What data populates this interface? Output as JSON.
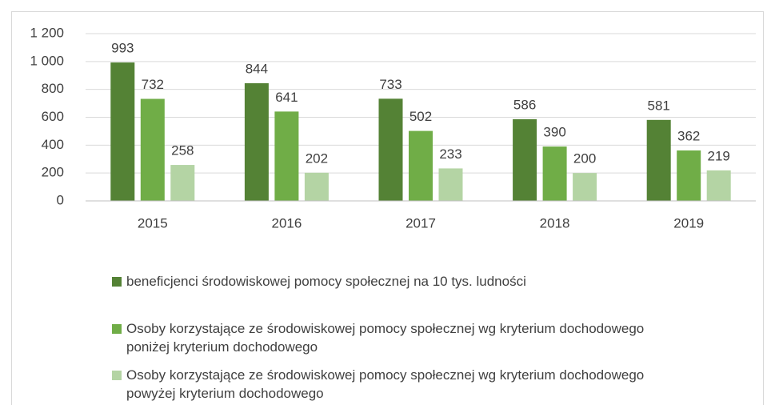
{
  "chart_data": {
    "type": "bar",
    "categories": [
      "2015",
      "2016",
      "2017",
      "2018",
      "2019"
    ],
    "series": [
      {
        "name": "beneficjenci środowiskowej pomocy społecznej na 10 tys. ludności",
        "color": "#548235",
        "values": [
          993,
          844,
          733,
          586,
          581
        ]
      },
      {
        "name": "Osoby korzystające ze środowiskowej pomocy społecznej wg kryterium dochodowego poniżej kryterium dochodowego",
        "color": "#70ad47",
        "values": [
          732,
          641,
          502,
          390,
          362
        ]
      },
      {
        "name": "Osoby korzystające ze środowiskowej pomocy społecznej wg kryterium dochodowego powyżej kryterium dochodowego",
        "color": "#b4d4a4",
        "values": [
          258,
          202,
          233,
          200,
          219
        ]
      }
    ],
    "ylim": [
      0,
      1200
    ],
    "yticks": [
      0,
      200,
      400,
      600,
      800,
      {
        "value": 1000,
        "label": "1 000"
      },
      {
        "value": 1200,
        "label": "1 200"
      }
    ],
    "grid": true,
    "legend": "bottom"
  }
}
